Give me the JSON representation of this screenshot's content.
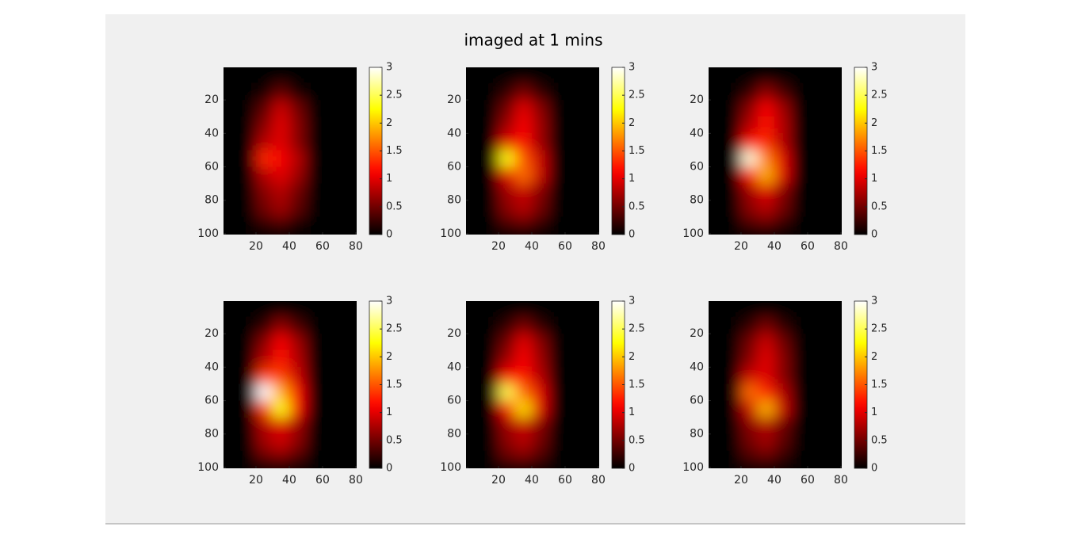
{
  "title": "imaged at 1 mins",
  "chart_data": [
    {
      "type": "heatmap",
      "colormap": "hot",
      "x": [
        5,
        15,
        25,
        35,
        45,
        55,
        65,
        75
      ],
      "y": [
        5,
        15,
        25,
        35,
        45,
        55,
        65,
        75,
        85,
        95
      ],
      "values": [
        [
          0,
          0,
          0,
          0,
          0,
          0,
          0,
          0
        ],
        [
          0,
          0,
          0.1,
          0.4,
          0.1,
          0,
          0,
          0
        ],
        [
          0,
          0,
          0.4,
          0.9,
          0.5,
          0,
          0,
          0
        ],
        [
          0,
          0,
          0.6,
          1.0,
          0.6,
          0,
          0,
          0
        ],
        [
          0,
          0,
          0.8,
          1.0,
          0.6,
          0,
          0,
          0
        ],
        [
          0,
          0,
          1.3,
          1.1,
          0.8,
          0,
          0,
          0
        ],
        [
          0,
          0,
          0.8,
          1.0,
          0.7,
          0,
          0,
          0
        ],
        [
          0,
          0,
          0.6,
          0.8,
          0.5,
          0,
          0,
          0
        ],
        [
          0,
          0,
          0.5,
          0.7,
          0.4,
          0,
          0,
          0
        ],
        [
          0,
          0,
          0.2,
          0.3,
          0.1,
          0,
          0,
          0
        ]
      ],
      "xlim": [
        0.5,
        80.5
      ],
      "ylim": [
        0.5,
        100.5
      ],
      "y_reversed": true,
      "xticks": [
        20,
        40,
        60,
        80
      ],
      "yticks": [
        20,
        40,
        60,
        80,
        100
      ],
      "colorbar": {
        "lim": [
          0,
          3
        ],
        "ticks": [
          0,
          0.5,
          1,
          1.5,
          2,
          2.5,
          3
        ]
      }
    },
    {
      "type": "heatmap",
      "colormap": "hot",
      "x": [
        5,
        15,
        25,
        35,
        45,
        55,
        65,
        75
      ],
      "y": [
        5,
        15,
        25,
        35,
        45,
        55,
        65,
        75,
        85,
        95
      ],
      "values": [
        [
          0,
          0,
          0,
          0,
          0,
          0,
          0,
          0
        ],
        [
          0,
          0,
          0.2,
          0.5,
          0.2,
          0,
          0,
          0
        ],
        [
          0,
          0,
          0.5,
          1.0,
          0.6,
          0,
          0,
          0
        ],
        [
          0,
          0,
          0.7,
          1.1,
          0.7,
          0,
          0,
          0
        ],
        [
          0,
          0,
          1.0,
          1.2,
          0.7,
          0,
          0,
          0
        ],
        [
          0,
          0,
          2.3,
          1.5,
          0.9,
          0,
          0,
          0
        ],
        [
          0,
          0,
          1.0,
          1.6,
          0.9,
          0,
          0,
          0
        ],
        [
          0,
          0,
          0.7,
          0.9,
          0.6,
          0,
          0,
          0
        ],
        [
          0,
          0,
          0.6,
          0.8,
          0.5,
          0,
          0,
          0
        ],
        [
          0,
          0,
          0.3,
          0.4,
          0.2,
          0,
          0,
          0
        ]
      ],
      "xlim": [
        0.5,
        80.5
      ],
      "ylim": [
        0.5,
        100.5
      ],
      "y_reversed": true,
      "xticks": [
        20,
        40,
        60,
        80
      ],
      "yticks": [
        20,
        40,
        60,
        80,
        100
      ],
      "colorbar": {
        "lim": [
          0,
          3
        ],
        "ticks": [
          0,
          0.5,
          1,
          1.5,
          2,
          2.5,
          3
        ]
      }
    },
    {
      "type": "heatmap",
      "colormap": "hot",
      "x": [
        5,
        15,
        25,
        35,
        45,
        55,
        65,
        75
      ],
      "y": [
        5,
        15,
        25,
        35,
        45,
        55,
        65,
        75,
        85,
        95
      ],
      "values": [
        [
          0,
          0,
          0,
          0,
          0,
          0,
          0,
          0
        ],
        [
          0,
          0,
          0.2,
          0.6,
          0.3,
          0,
          0,
          0
        ],
        [
          0,
          0,
          0.6,
          1.1,
          0.7,
          0,
          0,
          0
        ],
        [
          0,
          0,
          0.8,
          1.2,
          0.8,
          0,
          0,
          0
        ],
        [
          0,
          0,
          1.2,
          1.3,
          0.8,
          0,
          0,
          0
        ],
        [
          0,
          0,
          2.9,
          1.7,
          1.0,
          0,
          0,
          0
        ],
        [
          0,
          0,
          1.2,
          1.9,
          1.0,
          0,
          0,
          0
        ],
        [
          0,
          0,
          0.7,
          1.0,
          0.6,
          0,
          0,
          0
        ],
        [
          0,
          0,
          0.6,
          0.8,
          0.5,
          0,
          0,
          0
        ],
        [
          0,
          0,
          0.3,
          0.4,
          0.2,
          0,
          0,
          0
        ]
      ],
      "xlim": [
        0.5,
        80.5
      ],
      "ylim": [
        0.5,
        100.5
      ],
      "y_reversed": true,
      "xticks": [
        20,
        40,
        60,
        80
      ],
      "yticks": [
        20,
        40,
        60,
        80,
        100
      ],
      "colorbar": {
        "lim": [
          0,
          3
        ],
        "ticks": [
          0,
          0.5,
          1,
          1.5,
          2,
          2.5,
          3
        ]
      }
    },
    {
      "type": "heatmap",
      "colormap": "hot",
      "x": [
        5,
        15,
        25,
        35,
        45,
        55,
        65,
        75
      ],
      "y": [
        5,
        15,
        25,
        35,
        45,
        55,
        65,
        75,
        85,
        95
      ],
      "values": [
        [
          0,
          0,
          0,
          0,
          0,
          0,
          0,
          0
        ],
        [
          0,
          0,
          0.2,
          0.6,
          0.3,
          0,
          0,
          0
        ],
        [
          0,
          0,
          0.6,
          1.1,
          0.7,
          0,
          0,
          0
        ],
        [
          0,
          0,
          0.8,
          1.2,
          0.8,
          0,
          0,
          0
        ],
        [
          0,
          0,
          1.4,
          1.4,
          0.9,
          0,
          0,
          0
        ],
        [
          0,
          0,
          3.0,
          1.9,
          1.1,
          0,
          0,
          0
        ],
        [
          0,
          0,
          1.4,
          2.3,
          1.1,
          0,
          0,
          0
        ],
        [
          0,
          0,
          0.8,
          1.0,
          0.7,
          0,
          0,
          0
        ],
        [
          0,
          0,
          0.7,
          0.9,
          0.6,
          0,
          0,
          0
        ],
        [
          0,
          0,
          0.4,
          0.5,
          0.3,
          0,
          0,
          0
        ]
      ],
      "xlim": [
        0.5,
        80.5
      ],
      "ylim": [
        0.5,
        100.5
      ],
      "y_reversed": true,
      "xticks": [
        20,
        40,
        60,
        80
      ],
      "yticks": [
        20,
        40,
        60,
        80,
        100
      ],
      "colorbar": {
        "lim": [
          0,
          3
        ],
        "ticks": [
          0,
          0.5,
          1,
          1.5,
          2,
          2.5,
          3
        ]
      }
    },
    {
      "type": "heatmap",
      "colormap": "hot",
      "x": [
        5,
        15,
        25,
        35,
        45,
        55,
        65,
        75
      ],
      "y": [
        5,
        15,
        25,
        35,
        45,
        55,
        65,
        75,
        85,
        95
      ],
      "values": [
        [
          0,
          0,
          0,
          0,
          0,
          0,
          0,
          0
        ],
        [
          0,
          0,
          0.2,
          0.5,
          0.2,
          0,
          0,
          0
        ],
        [
          0,
          0,
          0.5,
          1.0,
          0.6,
          0,
          0,
          0
        ],
        [
          0,
          0,
          0.7,
          1.1,
          0.7,
          0,
          0,
          0
        ],
        [
          0,
          0,
          1.1,
          1.2,
          0.8,
          0,
          0,
          0
        ],
        [
          0,
          0,
          2.5,
          1.6,
          1.0,
          0,
          0,
          0
        ],
        [
          0,
          0,
          1.1,
          2.1,
          1.0,
          0,
          0,
          0
        ],
        [
          0,
          0,
          0.7,
          0.9,
          0.6,
          0,
          0,
          0
        ],
        [
          0,
          0,
          0.6,
          0.8,
          0.5,
          0,
          0,
          0
        ],
        [
          0,
          0,
          0.4,
          0.5,
          0.3,
          0,
          0,
          0
        ]
      ],
      "xlim": [
        0.5,
        80.5
      ],
      "ylim": [
        0.5,
        100.5
      ],
      "y_reversed": true,
      "xticks": [
        20,
        40,
        60,
        80
      ],
      "yticks": [
        20,
        40,
        60,
        80,
        100
      ],
      "colorbar": {
        "lim": [
          0,
          3
        ],
        "ticks": [
          0,
          0.5,
          1,
          1.5,
          2,
          2.5,
          3
        ]
      }
    },
    {
      "type": "heatmap",
      "colormap": "hot",
      "x": [
        5,
        15,
        25,
        35,
        45,
        55,
        65,
        75
      ],
      "y": [
        5,
        15,
        25,
        35,
        45,
        55,
        65,
        75,
        85,
        95
      ],
      "values": [
        [
          0,
          0,
          0,
          0,
          0,
          0,
          0,
          0
        ],
        [
          0,
          0,
          0.2,
          0.5,
          0.2,
          0,
          0,
          0
        ],
        [
          0,
          0,
          0.5,
          0.9,
          0.5,
          0,
          0,
          0
        ],
        [
          0,
          0,
          0.6,
          1.0,
          0.6,
          0,
          0,
          0
        ],
        [
          0,
          0,
          0.9,
          1.0,
          0.6,
          0,
          0,
          0
        ],
        [
          0,
          0,
          1.6,
          1.3,
          0.8,
          0,
          0,
          0
        ],
        [
          0,
          0,
          0.9,
          1.9,
          0.9,
          0,
          0,
          0
        ],
        [
          0,
          0,
          0.6,
          0.8,
          0.5,
          0,
          0,
          0
        ],
        [
          0,
          0,
          0.5,
          0.7,
          0.4,
          0,
          0,
          0
        ],
        [
          0,
          0,
          0.3,
          0.4,
          0.2,
          0,
          0,
          0
        ]
      ],
      "xlim": [
        0.5,
        80.5
      ],
      "ylim": [
        0.5,
        100.5
      ],
      "y_reversed": true,
      "xticks": [
        20,
        40,
        60,
        80
      ],
      "yticks": [
        20,
        40,
        60,
        80,
        100
      ],
      "colorbar": {
        "lim": [
          0,
          3
        ],
        "ticks": [
          0,
          0.5,
          1,
          1.5,
          2,
          2.5,
          3
        ]
      }
    }
  ]
}
